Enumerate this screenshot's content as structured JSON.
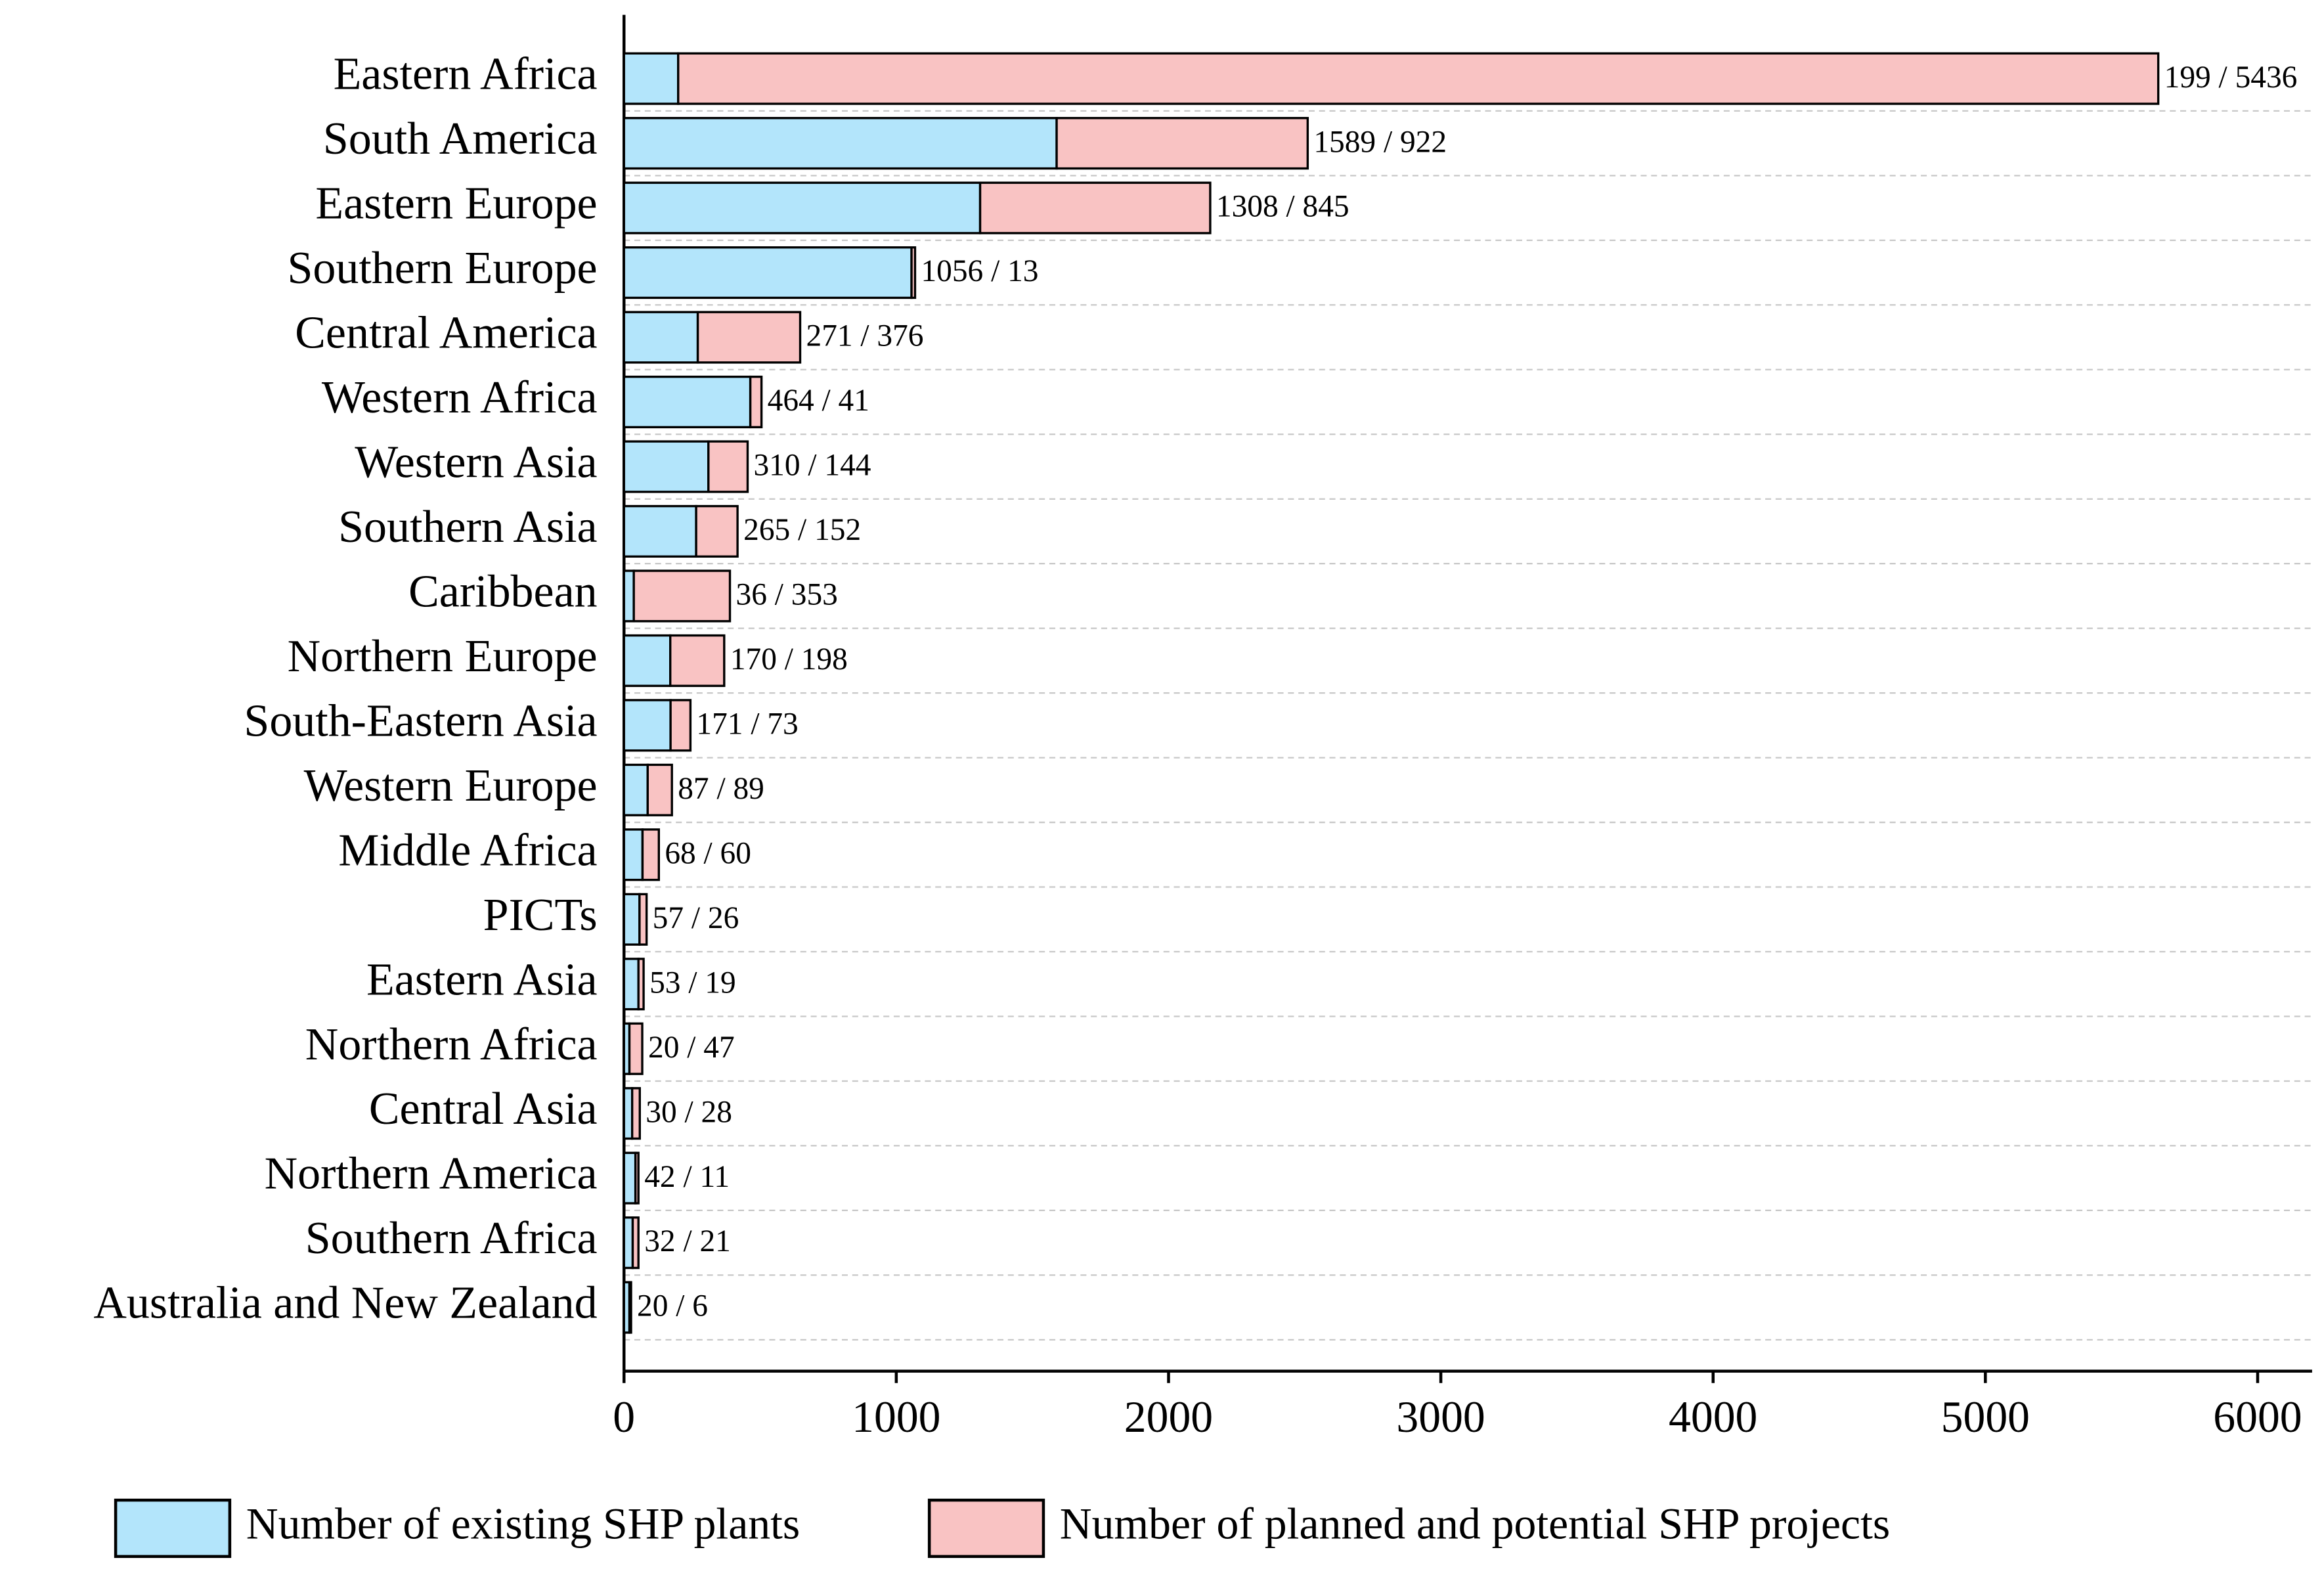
{
  "chart_data": {
    "type": "stacked_bar",
    "orientation": "horizontal",
    "categories": [
      "Eastern Africa",
      "South America",
      "Eastern Europe",
      "Southern Europe",
      "Central America",
      "Western Africa",
      "Western Asia",
      "Southern Asia",
      "Caribbean",
      "Northern Europe",
      "South-Eastern Asia",
      "Western Europe",
      "Middle Africa",
      "PICTs",
      "Eastern Asia",
      "Northern Africa",
      "Central Asia",
      "Northern America",
      "Southern Africa",
      "Australia and New Zealand"
    ],
    "series": [
      {
        "name": "Number of existing SHP plants",
        "color": "#b3e5fb",
        "values": [
          199,
          1589,
          1308,
          1056,
          271,
          464,
          310,
          265,
          36,
          170,
          171,
          87,
          68,
          57,
          53,
          20,
          30,
          42,
          32,
          20
        ]
      },
      {
        "name": "Number of planned and potential SHP projects",
        "color": "#f9c3c3",
        "values": [
          5436,
          922,
          845,
          13,
          376,
          41,
          144,
          152,
          353,
          198,
          73,
          89,
          60,
          26,
          19,
          47,
          28,
          11,
          21,
          6
        ]
      }
    ],
    "value_labels": [
      "199 / 5436",
      "1589 / 922",
      "1308 / 845",
      "1056 / 13",
      "271 / 376",
      "464 / 41",
      "310 / 144",
      "265 / 152",
      "36 / 353",
      "170 / 198",
      "171 / 73",
      "87 / 89",
      "68 / 60",
      "57 / 26",
      "53 / 19",
      "20 / 47",
      "30 / 28",
      "42 / 11",
      "32 / 21",
      "20 / 6"
    ],
    "xlim": [
      0,
      6200
    ],
    "xticks": [
      0,
      1000,
      2000,
      3000,
      4000,
      5000,
      6000
    ],
    "grid": true,
    "legend": "bottom"
  }
}
